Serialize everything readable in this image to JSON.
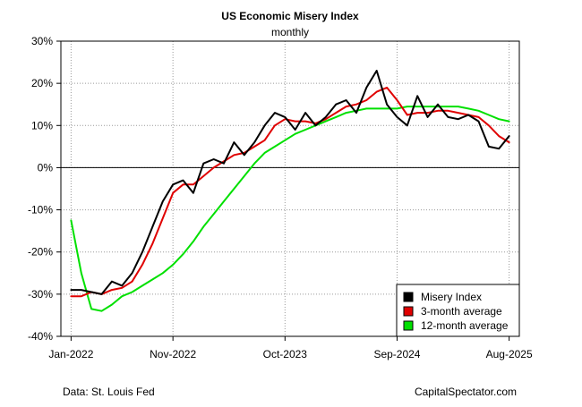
{
  "chart_data": {
    "type": "line",
    "title": "US Economic Misery Index",
    "subtitle": "monthly",
    "xlabel": "",
    "ylabel": "",
    "ylim": [
      -40,
      30
    ],
    "y_ticks": [
      -40,
      -30,
      -20,
      -10,
      0,
      10,
      20,
      30
    ],
    "y_tick_labels": [
      "-40%",
      "-30%",
      "-20%",
      "-10%",
      "0%",
      "10%",
      "20%",
      "30%"
    ],
    "x_range": [
      -1,
      44
    ],
    "x_ticks": [
      0,
      10,
      21,
      32,
      43
    ],
    "x_tick_labels": [
      "Jan-2022",
      "Nov-2022",
      "Oct-2023",
      "Sep-2024",
      "Aug-2025"
    ],
    "grid": true,
    "legend_position": "bottom-right",
    "zero_line": true,
    "series": [
      {
        "name": "Misery Index",
        "color": "#000000",
        "values": [
          -29,
          -29,
          -29.5,
          -30,
          -27,
          -28,
          -25,
          -20,
          -14,
          -8,
          -4,
          -3,
          -6,
          1,
          2,
          1,
          6,
          3,
          6,
          10,
          13,
          12,
          9,
          13,
          10,
          12,
          15,
          16,
          13,
          19,
          23,
          15,
          12,
          10,
          17,
          12,
          15,
          12,
          11.5,
          12.5,
          11,
          5,
          4.5,
          7.5
        ]
      },
      {
        "name": "3-month average",
        "color": "#e00000",
        "values": [
          -30.5,
          -30.5,
          -29.5,
          -30,
          -29,
          -28.5,
          -27,
          -23,
          -18,
          -12,
          -6,
          -4,
          -4,
          -2,
          0,
          1.5,
          3,
          3.5,
          5,
          6.5,
          10,
          11.5,
          11,
          11,
          10.5,
          11.5,
          13,
          14.5,
          15,
          16,
          18,
          19,
          16,
          12.5,
          13,
          13,
          13.5,
          13.5,
          13,
          12.5,
          12,
          10,
          7.5,
          6
        ]
      },
      {
        "name": "12-month average",
        "color": "#00e000",
        "values": [
          -12.5,
          -25,
          -33.5,
          -34,
          -32.5,
          -30.5,
          -29.5,
          -28,
          -26.5,
          -25,
          -23,
          -20.5,
          -17.5,
          -14,
          -11,
          -8,
          -5,
          -2,
          1,
          3.5,
          5,
          6.5,
          8,
          9,
          10,
          11,
          12,
          13,
          13.5,
          14,
          14,
          14,
          14,
          14.5,
          14.5,
          14.5,
          14.5,
          14.5,
          14.5,
          14,
          13.5,
          12.5,
          11.5,
          11
        ]
      }
    ],
    "annotations": {
      "source": "Data: St. Louis Fed",
      "credit": "CapitalSpectator.com"
    }
  }
}
